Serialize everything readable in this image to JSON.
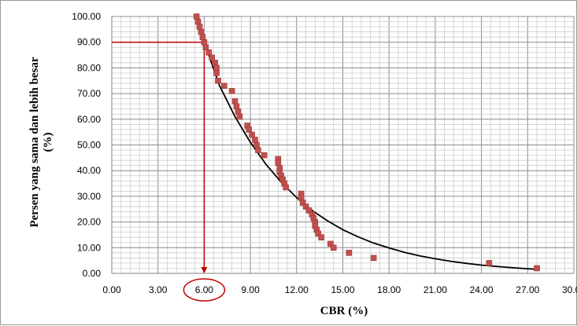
{
  "chart_data": {
    "type": "scatter",
    "title": "",
    "xlabel": "CBR (%)",
    "ylabel_line1": "Persen yang sama dan lebih besar",
    "ylabel_line2": "(%)",
    "xlim": [
      0,
      30
    ],
    "ylim": [
      0,
      100
    ],
    "x_ticks": [
      "0.00",
      "3.00",
      "6.00",
      "9.00",
      "12.00",
      "15.00",
      "18.00",
      "21.00",
      "24.00",
      "27.00",
      "30.00"
    ],
    "y_ticks": [
      "0.00",
      "10.00",
      "20.00",
      "30.00",
      "40.00",
      "50.00",
      "60.00",
      "70.00",
      "80.00",
      "90.00",
      "100.00"
    ],
    "grid": true,
    "series": [
      {
        "marker": "square",
        "color": "#c0504d",
        "points": [
          [
            5.5,
            100
          ],
          [
            5.6,
            98.0
          ],
          [
            5.7,
            96.0
          ],
          [
            5.8,
            94.0
          ],
          [
            5.9,
            92.0
          ],
          [
            6.0,
            90.0
          ],
          [
            6.1,
            88.0
          ],
          [
            6.3,
            86.0
          ],
          [
            6.5,
            84.0
          ],
          [
            6.7,
            82.0
          ],
          [
            6.8,
            80.0
          ],
          [
            6.8,
            78.0
          ],
          [
            6.9,
            75.0
          ],
          [
            7.3,
            73.0
          ],
          [
            7.8,
            71.0
          ],
          [
            8.0,
            67.0
          ],
          [
            8.1,
            65.0
          ],
          [
            8.2,
            63.0
          ],
          [
            8.3,
            61.0
          ],
          [
            8.8,
            57.5
          ],
          [
            8.9,
            56.0
          ],
          [
            9.1,
            54.0
          ],
          [
            9.3,
            52.0
          ],
          [
            9.4,
            50.0
          ],
          [
            9.5,
            48.0
          ],
          [
            9.9,
            46.0
          ],
          [
            10.8,
            44.5
          ],
          [
            10.8,
            43.0
          ],
          [
            10.9,
            41.0
          ],
          [
            10.9,
            39.5
          ],
          [
            11.0,
            38.0
          ],
          [
            11.1,
            36.5
          ],
          [
            11.2,
            35.0
          ],
          [
            11.3,
            33.5
          ],
          [
            12.3,
            31.0
          ],
          [
            12.3,
            29.5
          ],
          [
            12.4,
            27.5
          ],
          [
            12.6,
            26.0
          ],
          [
            12.8,
            24.5
          ],
          [
            13.0,
            23.0
          ],
          [
            13.1,
            21.5
          ],
          [
            13.2,
            20.0
          ],
          [
            13.2,
            18.5
          ],
          [
            13.3,
            17.0
          ],
          [
            13.4,
            15.5
          ],
          [
            13.6,
            14.0
          ],
          [
            14.2,
            11.5
          ],
          [
            14.4,
            10.0
          ],
          [
            15.4,
            8.0
          ],
          [
            17.0,
            6.0
          ],
          [
            24.5,
            4.0
          ],
          [
            27.6,
            2.0
          ]
        ]
      }
    ],
    "trendline": {
      "type": "exponential",
      "color": "#000000",
      "points": [
        [
          5.6,
          100
        ],
        [
          6.0,
          90
        ],
        [
          7.0,
          73
        ],
        [
          8.0,
          61
        ],
        [
          9.0,
          51
        ],
        [
          10.0,
          42.5
        ],
        [
          11.0,
          35.5
        ],
        [
          12.0,
          29.5
        ],
        [
          13.0,
          24.5
        ],
        [
          14.0,
          20.5
        ],
        [
          15.0,
          17
        ],
        [
          16.0,
          14.2
        ],
        [
          17.0,
          11.8
        ],
        [
          18.0,
          9.9
        ],
        [
          19.0,
          8.2
        ],
        [
          20.0,
          6.8
        ],
        [
          21.0,
          5.7
        ],
        [
          22.0,
          4.7
        ],
        [
          23.0,
          3.9
        ],
        [
          24.0,
          3.2
        ],
        [
          25.0,
          2.7
        ],
        [
          26.0,
          2.2
        ],
        [
          27.0,
          1.8
        ],
        [
          27.8,
          1.5
        ]
      ]
    },
    "annotation": {
      "x": 6.0,
      "y": 90.0,
      "line_color": "#c00000",
      "highlight_tick": "6.00"
    }
  }
}
